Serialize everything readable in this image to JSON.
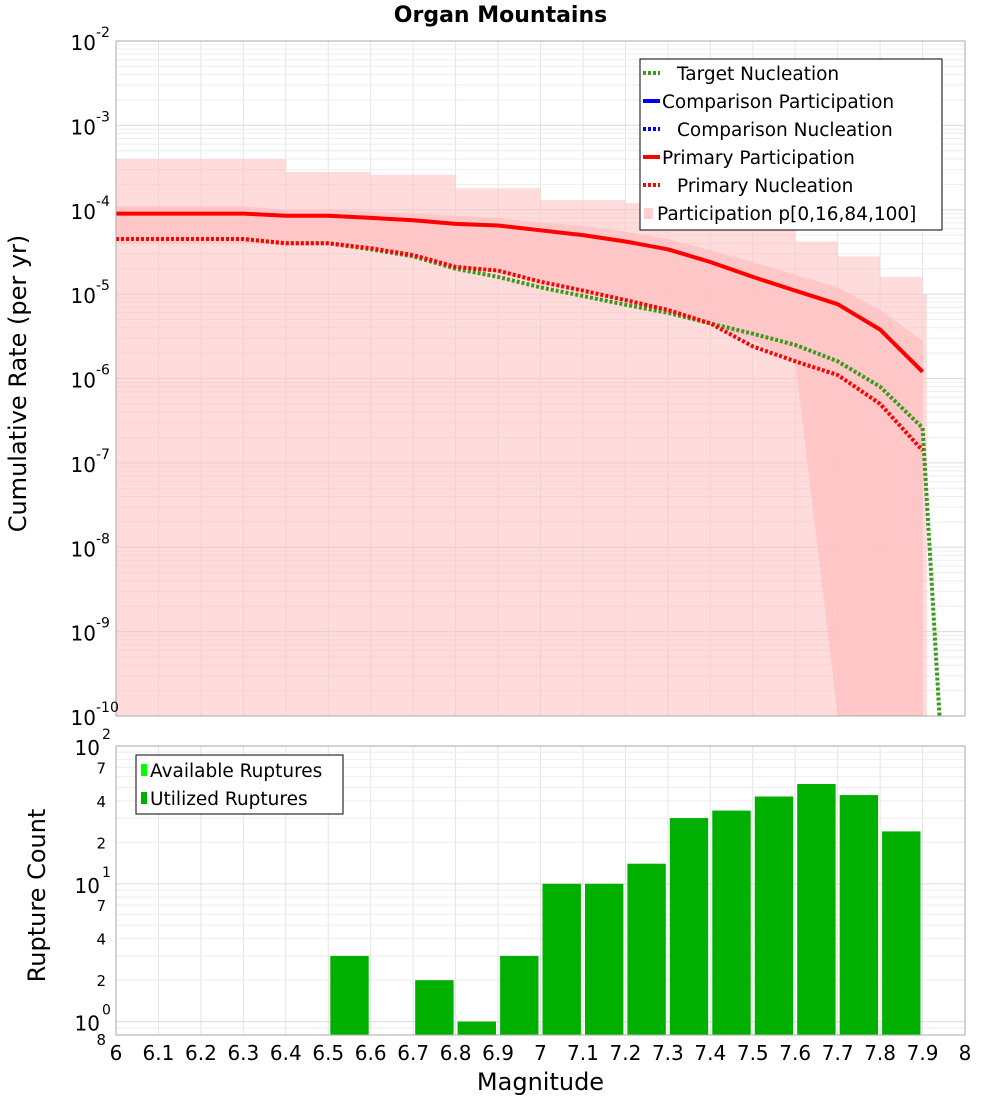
{
  "chart_data": [
    {
      "type": "line",
      "title": "Organ Mountains",
      "xlabel": "",
      "ylabel": "Cumulative Rate (per yr)",
      "xlim": [
        6,
        8
      ],
      "ylim": [
        1e-10,
        0.01
      ],
      "yscale": "log",
      "grid": true,
      "legend_position": "top-right",
      "y_ticks": [
        {
          "base": "10",
          "exp": "-2",
          "value": 0.01
        },
        {
          "base": "10",
          "exp": "-3",
          "value": 0.001
        },
        {
          "base": "10",
          "exp": "-4",
          "value": 0.0001
        },
        {
          "base": "10",
          "exp": "-5",
          "value": 1e-05
        },
        {
          "base": "10",
          "exp": "-6",
          "value": 1e-06
        },
        {
          "base": "10",
          "exp": "-7",
          "value": 1e-07
        },
        {
          "base": "10",
          "exp": "-8",
          "value": 1e-08
        },
        {
          "base": "10",
          "exp": "-9",
          "value": 1e-09
        },
        {
          "base": "10",
          "exp": "-10",
          "value": 1e-10
        }
      ],
      "series": [
        {
          "name": "Target Nucleation",
          "style": "dotted",
          "color": "#3a9a1c",
          "x": [
            6.0,
            6.1,
            6.2,
            6.3,
            6.4,
            6.5,
            6.6,
            6.7,
            6.8,
            6.9,
            7.0,
            7.1,
            7.2,
            7.3,
            7.4,
            7.5,
            7.6,
            7.7,
            7.8,
            7.9,
            7.94
          ],
          "y": [
            4.5e-05,
            4.5e-05,
            4.5e-05,
            4.5e-05,
            4e-05,
            4e-05,
            3.4e-05,
            2.8e-05,
            2e-05,
            1.6e-05,
            1.2e-05,
            9.5e-06,
            7.5e-06,
            6e-06,
            4.5e-06,
            3.4e-06,
            2.5e-06,
            1.6e-06,
            8e-07,
            2.6e-07,
            1e-10
          ]
        },
        {
          "name": "Comparison Participation",
          "style": "solid",
          "color": "#0000ff",
          "x": [],
          "y": []
        },
        {
          "name": "Comparison Nucleation",
          "style": "dotted",
          "color": "#0000ff",
          "x": [],
          "y": []
        },
        {
          "name": "Primary Participation",
          "style": "solid",
          "color": "#ff0000",
          "x": [
            6.0,
            6.1,
            6.2,
            6.3,
            6.4,
            6.5,
            6.6,
            6.7,
            6.8,
            6.9,
            7.0,
            7.1,
            7.2,
            7.3,
            7.4,
            7.5,
            7.6,
            7.7,
            7.8,
            7.9
          ],
          "y": [
            9e-05,
            9e-05,
            9e-05,
            9e-05,
            8.5e-05,
            8.5e-05,
            8e-05,
            7.5e-05,
            6.8e-05,
            6.5e-05,
            5.7e-05,
            5e-05,
            4.2e-05,
            3.4e-05,
            2.4e-05,
            1.6e-05,
            1.1e-05,
            7.6e-06,
            3.8e-06,
            1.2e-06
          ]
        },
        {
          "name": "Primary Nucleation",
          "style": "dotted",
          "color": "#ff0000",
          "x": [
            6.0,
            6.1,
            6.2,
            6.3,
            6.4,
            6.5,
            6.6,
            6.7,
            6.8,
            6.9,
            7.0,
            7.1,
            7.2,
            7.3,
            7.4,
            7.5,
            7.6,
            7.7,
            7.8,
            7.9
          ],
          "y": [
            4.5e-05,
            4.5e-05,
            4.5e-05,
            4.5e-05,
            4e-05,
            4e-05,
            3.5e-05,
            2.9e-05,
            2.1e-05,
            1.9e-05,
            1.4e-05,
            1.1e-05,
            8.5e-06,
            6.5e-06,
            4.5e-06,
            2.4e-06,
            1.6e-06,
            1.1e-06,
            5e-07,
            1.4e-07
          ]
        }
      ],
      "bands": [
        {
          "name": "Participation p[0,16,84,100]",
          "color": "#ffc0c0",
          "outer": {
            "x": [
              6.0,
              6.3,
              6.4,
              6.6,
              6.8,
              6.9,
              7.0,
              7.2,
              7.4,
              7.5,
              7.6,
              7.7,
              7.8,
              7.9
            ],
            "upper": [
              0.0004,
              0.0004,
              0.00028,
              0.00026,
              0.00018,
              0.00018,
              0.00013,
              0.00012,
              8.5e-05,
              6e-05,
              4.2e-05,
              2.8e-05,
              1.6e-05,
              1e-05
            ],
            "lower": [
              1e-10,
              1e-10,
              1e-10,
              1e-10,
              1e-10,
              1e-10,
              1e-10,
              1e-10,
              1e-10,
              1e-10,
              1e-10,
              1e-10,
              1e-10,
              1e-10
            ]
          },
          "inner": {
            "x": [
              6.0,
              6.1,
              6.2,
              6.3,
              6.4,
              6.5,
              6.6,
              6.7,
              6.8,
              6.9,
              7.0,
              7.1,
              7.2,
              7.3,
              7.4,
              7.5,
              7.6,
              7.7,
              7.8,
              7.9
            ],
            "upper": [
              0.00011,
              0.00011,
              0.00011,
              0.00011,
              0.0001,
              0.0001,
              9.5e-05,
              9e-05,
              8.5e-05,
              8e-05,
              7e-05,
              6.5e-05,
              5.5e-05,
              4.5e-05,
              3.3e-05,
              2.4e-05,
              1.7e-05,
              1.2e-05,
              6.5e-06,
              2.8e-06
            ],
            "lower": [
              4e-05,
              4e-05,
              4e-05,
              4e-05,
              3.8e-05,
              3.8e-05,
              3.3e-05,
              2.8e-05,
              2e-05,
              1.8e-05,
              1.4e-05,
              1.1e-05,
              8.5e-06,
              6e-06,
              4.5e-06,
              2.8e-06,
              1.6e-06,
              1e-10,
              1e-10,
              1e-10
            ]
          }
        }
      ]
    },
    {
      "type": "bar",
      "title": "",
      "xlabel": "Magnitude",
      "ylabel": "Rupture Count",
      "xlim": [
        6,
        8
      ],
      "ylim": [
        0.8,
        100
      ],
      "yscale": "log",
      "grid": true,
      "legend_position": "top-left",
      "x_ticks": [
        "6",
        "6.1",
        "6.2",
        "6.3",
        "6.4",
        "6.5",
        "6.6",
        "6.7",
        "6.8",
        "6.9",
        "7",
        "7.1",
        "7.2",
        "7.3",
        "7.4",
        "7.5",
        "7.6",
        "7.7",
        "7.8",
        "7.9",
        "8"
      ],
      "y_major_ticks": [
        {
          "base": "10",
          "exp": "2",
          "value": 100
        },
        {
          "base": "10",
          "exp": "1",
          "value": 10
        },
        {
          "base": "10",
          "exp": "0",
          "value": 1
        }
      ],
      "y_minor_ticks": [
        {
          "label": "7",
          "value": 70
        },
        {
          "label": "4",
          "value": 40
        },
        {
          "label": "2",
          "value": 20
        },
        {
          "label": "7",
          "value": 7
        },
        {
          "label": "4",
          "value": 4
        },
        {
          "label": "2",
          "value": 2
        },
        {
          "label": "8",
          "value": 0.8
        }
      ],
      "series": [
        {
          "name": "Available Ruptures",
          "color": "#00ff00",
          "x": [],
          "values": []
        },
        {
          "name": "Utilized Ruptures",
          "color": "#00b000",
          "x": [
            6.55,
            6.75,
            6.85,
            6.95,
            7.05,
            7.15,
            7.25,
            7.35,
            7.45,
            7.55,
            7.65,
            7.75,
            7.85
          ],
          "values": [
            3,
            2,
            1,
            3,
            10,
            10,
            14,
            30,
            34,
            43,
            53,
            44,
            24
          ]
        }
      ]
    }
  ]
}
